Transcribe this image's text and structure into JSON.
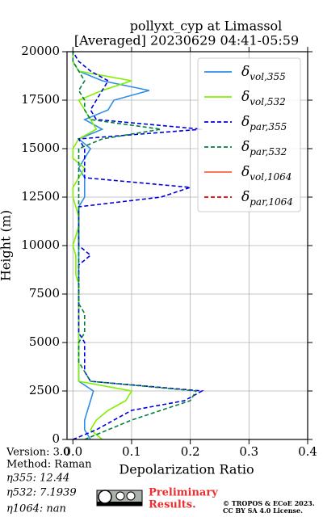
{
  "chart_data": {
    "type": "line",
    "title": "pollyxt_cyp at Limassol",
    "subtitle": "[Averaged] 20230629 04:41-05:59",
    "x_label": "Depolarization Ratio",
    "y_label": "Height (m)",
    "xlim": [
      -0.01,
      0.4
    ],
    "xticks": [
      {
        "value": 0,
        "label": "0.0"
      },
      0.1,
      0.2,
      0.3,
      0.4
    ],
    "ylim": [
      0,
      20000
    ],
    "yticks": [
      0,
      2500,
      5000,
      7500,
      10000,
      12500,
      15000,
      17500,
      20000
    ],
    "grid": true,
    "legend": "upper right",
    "y": [
      0,
      500,
      1000,
      1500,
      2000,
      2500,
      3000,
      3500,
      4000,
      4500,
      5000,
      5500,
      6000,
      6500,
      7000,
      7500,
      8000,
      8500,
      9000,
      9500,
      10000,
      10500,
      11000,
      11500,
      12000,
      12500,
      13000,
      13500,
      14000,
      14500,
      15000,
      15500,
      16000,
      16500,
      17000,
      17500,
      18000,
      18500,
      19000,
      19500,
      20000
    ],
    "series": [
      {
        "name": "δvol,355",
        "color": "#2e8ee8",
        "linestyle": "solid",
        "values": [
          0.03,
          0.02,
          0.02,
          0.025,
          0.03,
          0.035,
          0.01,
          0.01,
          0.01,
          0.01,
          0.01,
          0.01,
          0.01,
          0.01,
          0.01,
          0.01,
          0.01,
          0.01,
          0.01,
          0.01,
          0.01,
          0.01,
          0.01,
          0.01,
          0.01,
          0.02,
          0.02,
          0.02,
          0.01,
          0.02,
          0.03,
          0.01,
          0.05,
          0.02,
          0.06,
          0.07,
          0.13,
          0.05,
          0.01,
          0.0,
          0.0
        ]
      },
      {
        "name": "δvol,532",
        "color": "#80f000",
        "linestyle": "solid",
        "values": [
          0.05,
          0.03,
          0.04,
          0.06,
          0.09,
          0.1,
          0.01,
          0.01,
          0.01,
          0.01,
          0.01,
          0.01,
          0.01,
          0.01,
          0.01,
          0.01,
          0.01,
          0.005,
          0.005,
          0.005,
          0.0,
          0.005,
          0.01,
          0.01,
          0.005,
          0.0,
          0.0,
          0.01,
          0.02,
          0.0,
          0.0,
          0.01,
          0.04,
          0.03,
          0.02,
          0.01,
          0.05,
          0.1,
          0.01,
          0.0,
          0.0
        ]
      },
      {
        "name": "δpar,355",
        "color": "#0000dd",
        "linestyle": "dashed",
        "values": [
          0.0,
          0.04,
          0.07,
          0.1,
          0.19,
          0.22,
          0.03,
          0.02,
          0.02,
          0.02,
          0.02,
          0.01,
          0.01,
          0.01,
          0.01,
          0.01,
          0.01,
          0.01,
          0.01,
          0.03,
          0.01,
          0.01,
          0.01,
          0.01,
          0.01,
          0.15,
          0.2,
          0.02,
          0.02,
          0.02,
          0.02,
          0.01,
          0.22,
          0.04,
          0.03,
          0.04,
          0.05,
          0.06,
          0.03,
          0.01,
          0.0
        ]
      },
      {
        "name": "δpar,532",
        "color": "#008040",
        "linestyle": "dashed",
        "values": [
          0.02,
          0.06,
          0.1,
          0.15,
          0.2,
          0.21,
          0.03,
          0.02,
          0.01,
          0.01,
          0.01,
          0.02,
          0.02,
          0.02,
          0.01,
          0.01,
          0.01,
          0.01,
          0.01,
          0.01,
          0.01,
          0.01,
          0.01,
          0.01,
          0.01,
          0.01,
          0.01,
          0.01,
          0.01,
          0.01,
          0.01,
          0.05,
          0.15,
          0.03,
          0.02,
          0.02,
          0.01,
          0.02,
          0.01,
          0.0,
          0.0
        ]
      },
      {
        "name": "δvol,1064",
        "color": "#ff6040",
        "linestyle": "solid",
        "values": [
          null,
          null,
          null,
          null,
          null,
          null,
          null,
          null,
          null,
          null,
          null,
          null,
          null,
          null,
          null,
          null,
          null,
          null,
          null,
          null,
          null,
          null,
          null,
          null,
          null,
          null,
          null,
          null,
          null,
          null,
          null,
          null,
          null,
          null,
          null,
          null,
          null,
          null,
          null,
          null,
          null
        ]
      },
      {
        "name": "δpar,1064",
        "color": "#dd0000",
        "linestyle": "dashed",
        "values": [
          null,
          null,
          null,
          null,
          null,
          null,
          null,
          null,
          null,
          null,
          null,
          null,
          null,
          null,
          null,
          null,
          null,
          null,
          null,
          null,
          null,
          null,
          null,
          null,
          null,
          null,
          null,
          null,
          null,
          null,
          null,
          null,
          null,
          null,
          null,
          null,
          null,
          null,
          null,
          null,
          null
        ]
      }
    ]
  },
  "info": {
    "version": "Version: 3.0",
    "method": "Method: Raman",
    "eta355": "η355:  12.44",
    "eta532": "η532: 7.1939",
    "eta1064": "η1064:    nan"
  },
  "notice": {
    "line1": "Preliminary",
    "line2": "Results."
  },
  "copyright": {
    "line1": "© TROPOS & ECoE 2023.",
    "line2": "CC BY SA 4.0 License."
  }
}
